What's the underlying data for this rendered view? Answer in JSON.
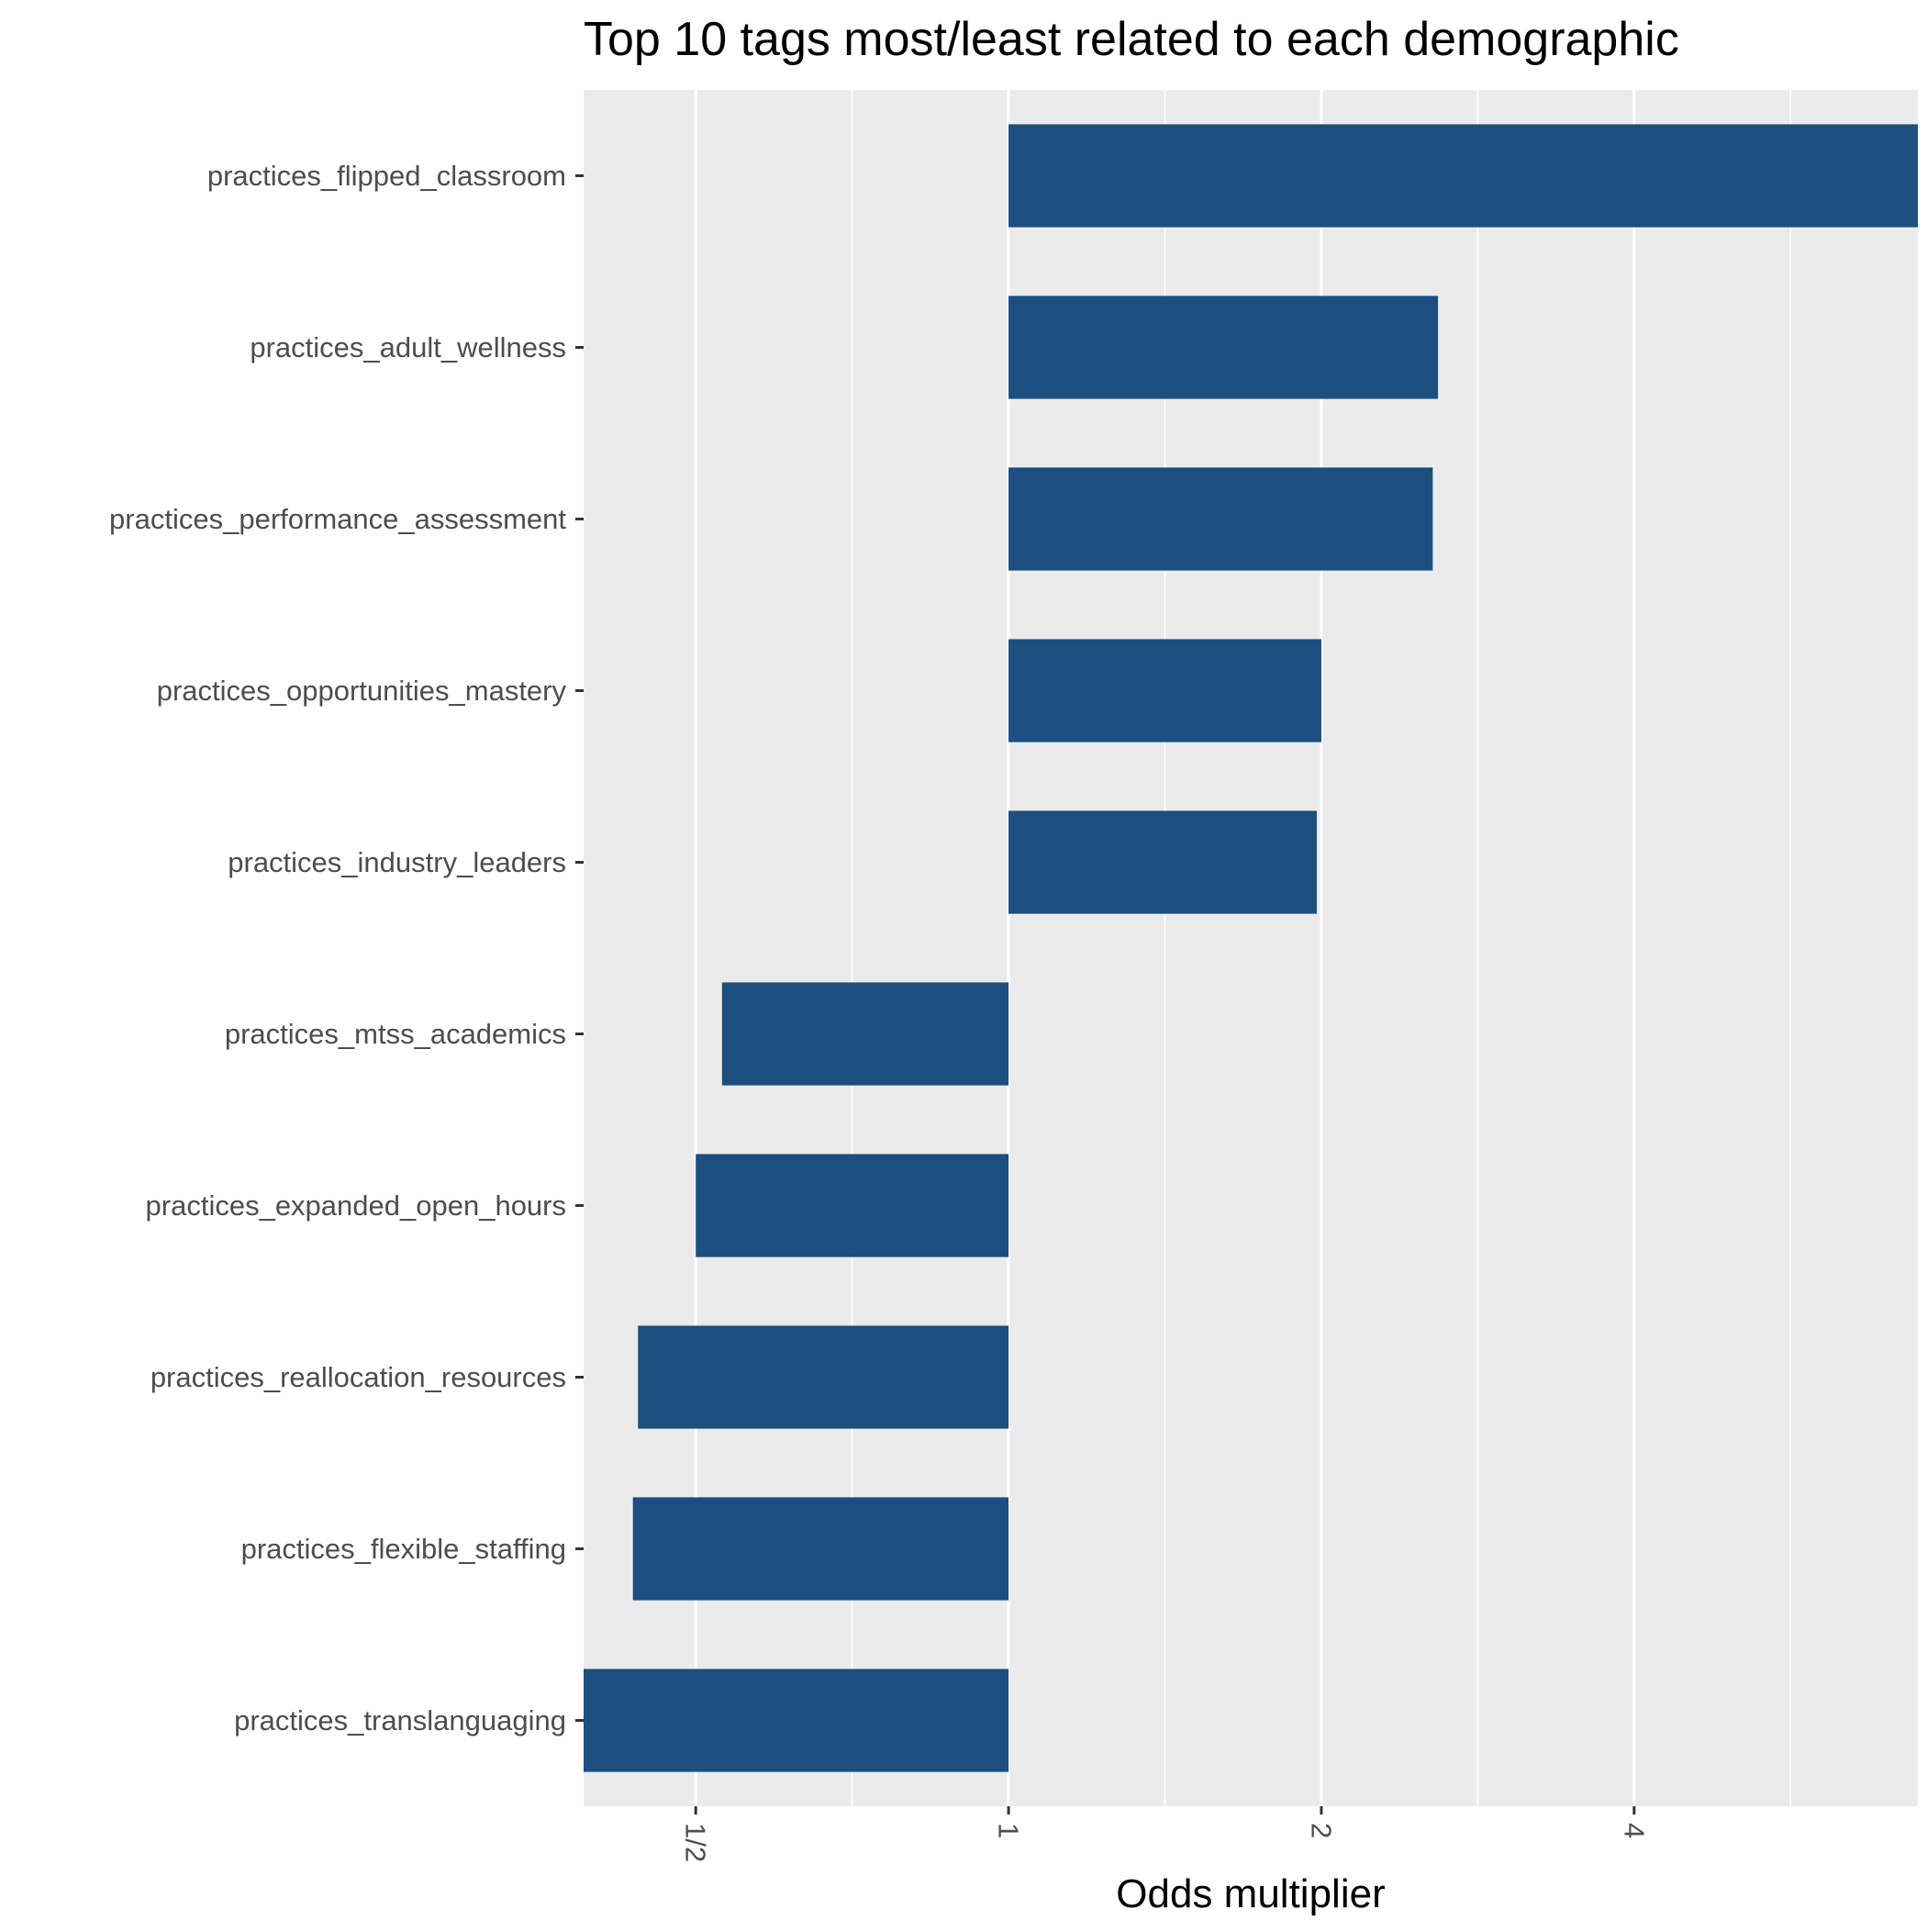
{
  "chart_data": {
    "type": "bar",
    "orientation": "horizontal",
    "title": "Top 10 tags most/least related to each demographic",
    "xlabel": "Odds multiplier",
    "ylabel": "",
    "x_scale": "log2",
    "xlim": [
      0.39,
      7.5
    ],
    "baseline": 1,
    "x_ticks": [
      {
        "value": 0.5,
        "label": "1/2"
      },
      {
        "value": 1,
        "label": "1"
      },
      {
        "value": 2,
        "label": "2"
      },
      {
        "value": 4,
        "label": "4"
      }
    ],
    "x_minor_grid": [
      0.7071,
      1.4142,
      2.8284,
      5.6569
    ],
    "categories": [
      "practices_flipped_classroom",
      "practices_adult_wellness",
      "practices_performance_assessment",
      "practices_opportunities_mastery",
      "practices_industry_leaders",
      "practices_mtss_academics",
      "practices_expanded_open_hours",
      "practices_reallocation_resources",
      "practices_flexible_staffing",
      "practices_translanguaging"
    ],
    "values": [
      7.5,
      2.59,
      2.56,
      2.0,
      1.98,
      0.53,
      0.5,
      0.44,
      0.435,
      0.39
    ],
    "grid": true,
    "legend": "none",
    "colors": {
      "bar": "#1c4e80",
      "panel": "#ebebeb",
      "gridline": "#ffffff",
      "tick_text": "#4d4d4d",
      "tick_mark": "#333333",
      "title": "#000000"
    }
  }
}
